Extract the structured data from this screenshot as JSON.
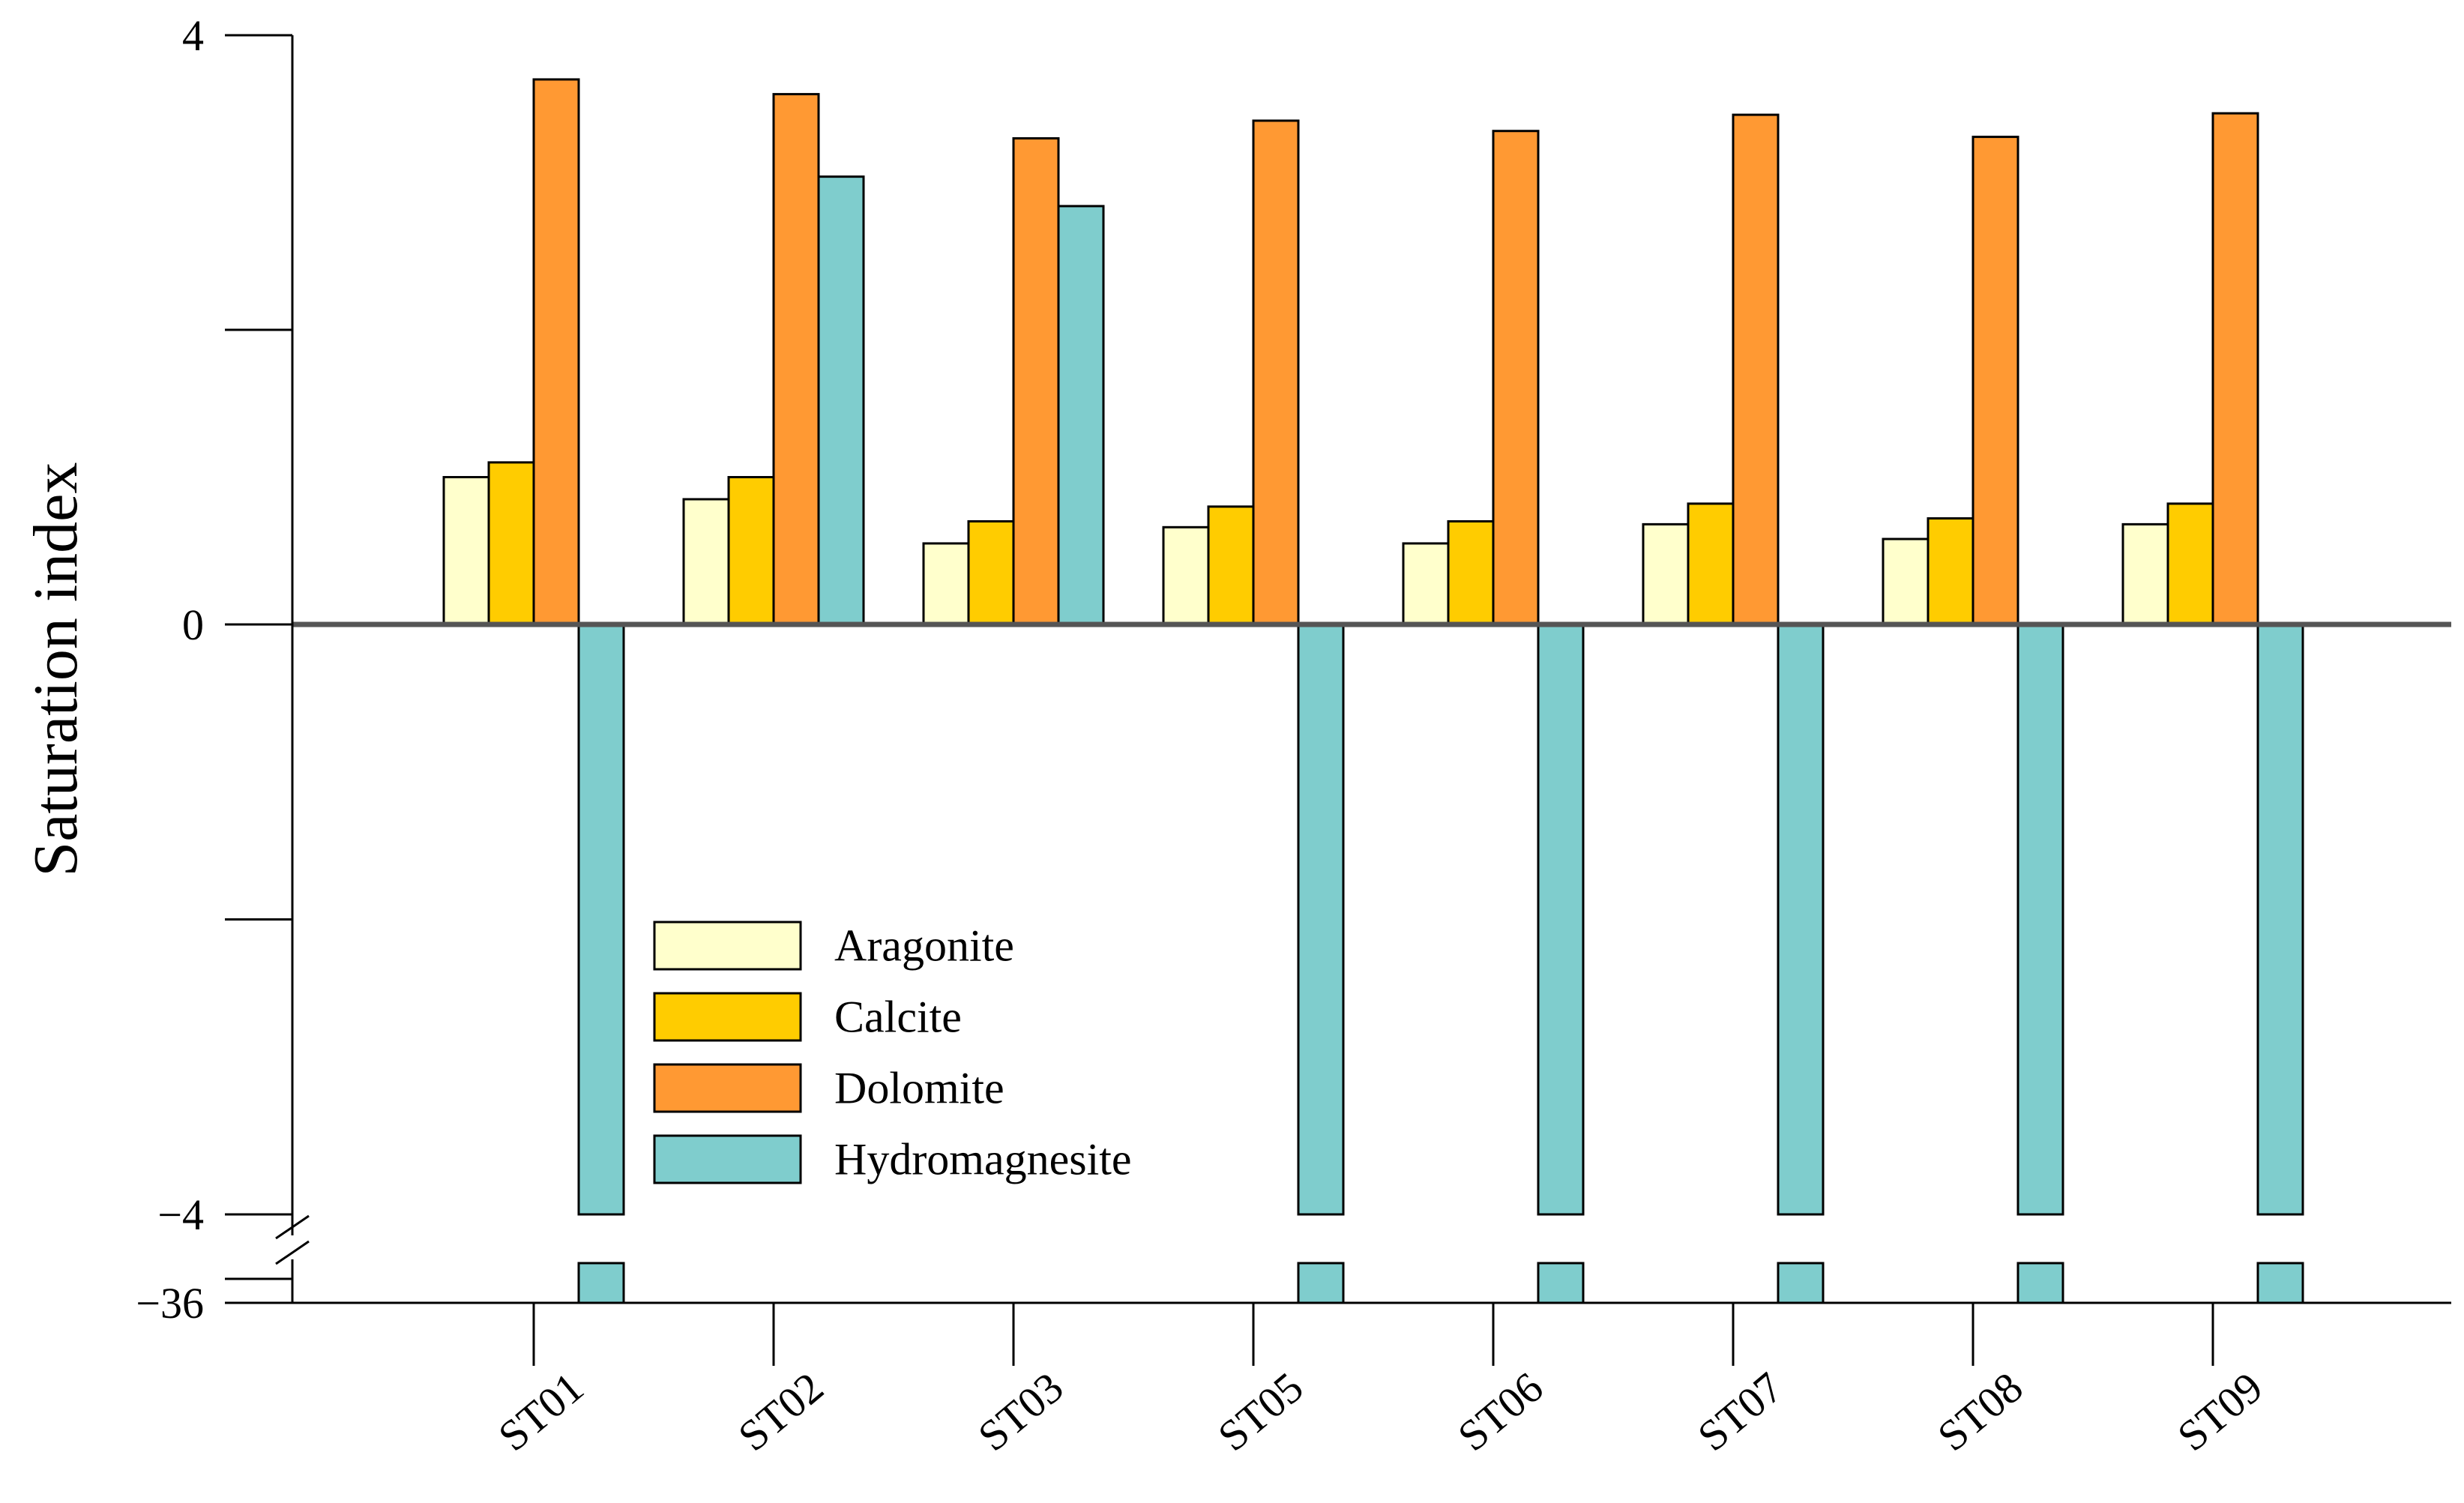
{
  "chart_data": {
    "type": "bar",
    "title": "",
    "xlabel": "",
    "ylabel": "Saturation index",
    "categories": [
      "ST01",
      "ST02",
      "ST03",
      "ST05",
      "ST06",
      "ST07",
      "ST08",
      "ST09"
    ],
    "series": [
      {
        "name": "Aragonite",
        "color": "#FFFFCC",
        "values": [
          1.0,
          0.85,
          0.55,
          0.66,
          0.55,
          0.68,
          0.58,
          0.68
        ]
      },
      {
        "name": "Calcite",
        "color": "#FFCC00",
        "values": [
          1.1,
          1.0,
          0.7,
          0.8,
          0.7,
          0.82,
          0.72,
          0.82
        ]
      },
      {
        "name": "Dolomite",
        "color": "#FF9933",
        "values": [
          3.7,
          3.6,
          3.3,
          3.42,
          3.35,
          3.46,
          3.31,
          3.47
        ]
      },
      {
        "name": "Hydromagnesite",
        "color": "#7FCDCD",
        "values": [
          -36.0,
          3.04,
          2.84,
          -36.0,
          -36.0,
          -36.0,
          -36.0,
          -36.0
        ]
      }
    ],
    "y_ticks": [
      "4",
      "0",
      "−4",
      "−36"
    ],
    "y_tick_values": [
      4,
      0,
      -4,
      -36
    ],
    "y_axis_break": {
      "lower_segment": [
        -36,
        -36
      ],
      "upper_segment": [
        -4,
        4
      ]
    },
    "ylim": [
      -36,
      4
    ],
    "grid": false,
    "legend_position": "lower-center",
    "zero_line": true
  }
}
